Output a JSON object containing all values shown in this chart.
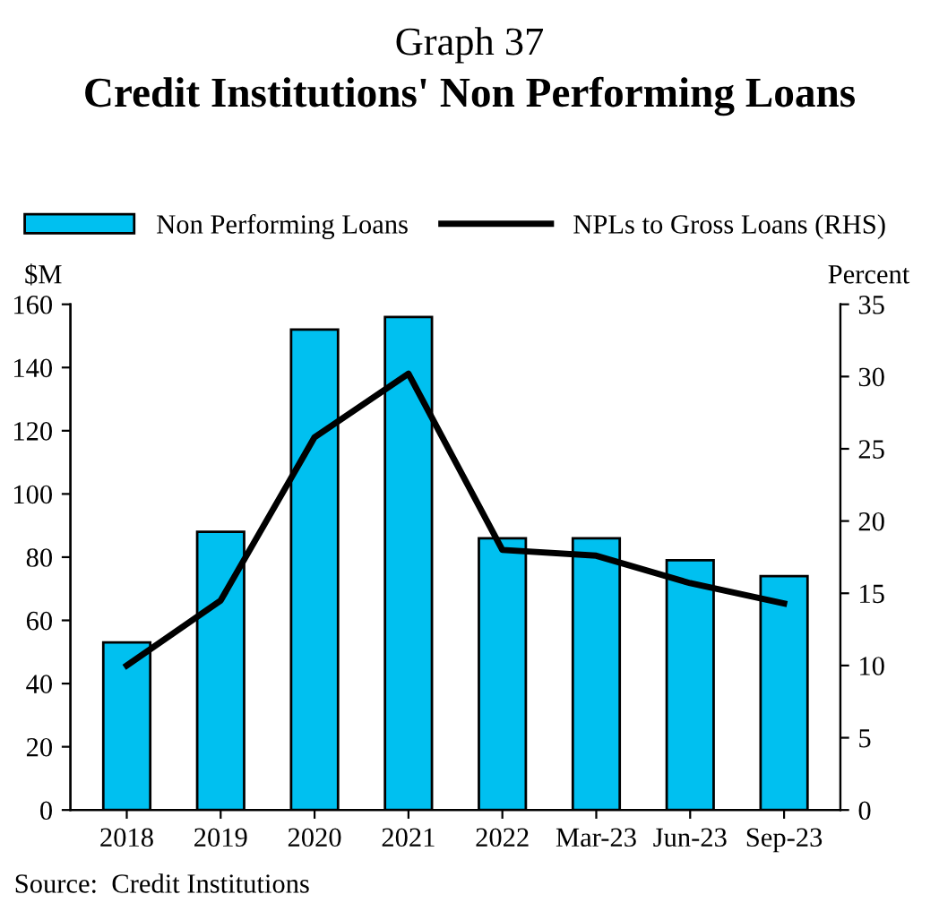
{
  "chart_data": {
    "type": "bar",
    "title": "Graph 37",
    "subtitle": "Credit Institutions' Non Performing Loans",
    "ylabel": "$M",
    "y2label": "Percent",
    "categories": [
      "2018",
      "2019",
      "2020",
      "2021",
      "2022",
      "Mar-23",
      "Jun-23",
      "Sep-23"
    ],
    "series": [
      {
        "name": "Non Performing Loans",
        "color": "#00c0f0",
        "values": [
          53,
          88,
          152,
          156,
          86,
          86,
          79,
          74
        ]
      },
      {
        "name": "NPLs to Gross Loans (RHS)",
        "type": "line",
        "axis": "y2",
        "color": "#000000",
        "values": [
          10.0,
          14.5,
          25.8,
          30.2,
          18.0,
          17.6,
          15.7,
          14.3
        ]
      }
    ],
    "ylim": [
      0,
      160
    ],
    "yticks": [
      0,
      20,
      40,
      60,
      80,
      100,
      120,
      140,
      160
    ],
    "y2lim": [
      0,
      35
    ],
    "y2ticks": [
      0,
      5,
      10,
      15,
      20,
      25,
      30,
      35
    ],
    "legend": "top",
    "grid": false,
    "marker": "none",
    "line_style": "solid",
    "annotations": [
      "Source:  Credit Institutions"
    ]
  }
}
